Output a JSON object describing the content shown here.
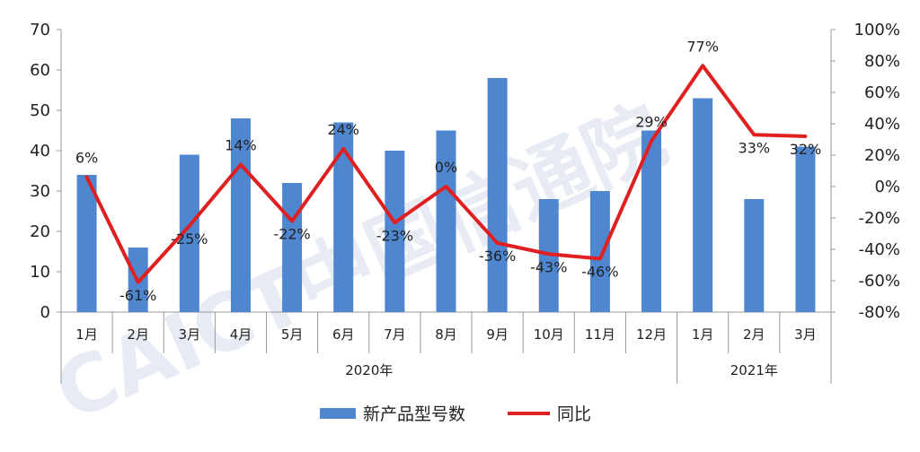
{
  "chart_data": {
    "type": "bar+line",
    "categories": [
      "1月",
      "2月",
      "3月",
      "4月",
      "5月",
      "6月",
      "7月",
      "8月",
      "9月",
      "10月",
      "11月",
      "12月",
      "1月",
      "2月",
      "3月"
    ],
    "groups": [
      {
        "label": "2020年",
        "start": 0,
        "end": 11
      },
      {
        "label": "2021年",
        "start": 12,
        "end": 14
      }
    ],
    "series": [
      {
        "name": "新产品型号数",
        "type": "bar",
        "axis": "left",
        "color": "#4f86d0",
        "values": [
          34,
          16,
          39,
          48,
          32,
          47,
          40,
          45,
          58,
          28,
          30,
          45,
          53,
          28,
          41
        ]
      },
      {
        "name": "同比",
        "type": "line",
        "axis": "right",
        "color": "#e02020",
        "values": [
          6,
          -61,
          -25,
          14,
          -22,
          24,
          -23,
          0,
          -36,
          -43,
          -46,
          29,
          77,
          33,
          32
        ],
        "labels": [
          "6%",
          "-61%",
          "-25%",
          "14%",
          "-22%",
          "24%",
          "-23%",
          "0%",
          "-36%",
          "-43%",
          "-46%",
          "29%",
          "77%",
          "33%",
          "32%"
        ]
      }
    ],
    "left_axis": {
      "min": 0,
      "max": 70,
      "ticks": [
        0,
        10,
        20,
        30,
        40,
        50,
        60,
        70
      ]
    },
    "right_axis": {
      "min": -80,
      "max": 100,
      "ticks": [
        "-80%",
        "-60%",
        "-40%",
        "-20%",
        "0%",
        "20%",
        "40%",
        "60%",
        "80%",
        "100%"
      ]
    },
    "legend_position": "bottom",
    "watermark": "CAICT中国信通院"
  }
}
